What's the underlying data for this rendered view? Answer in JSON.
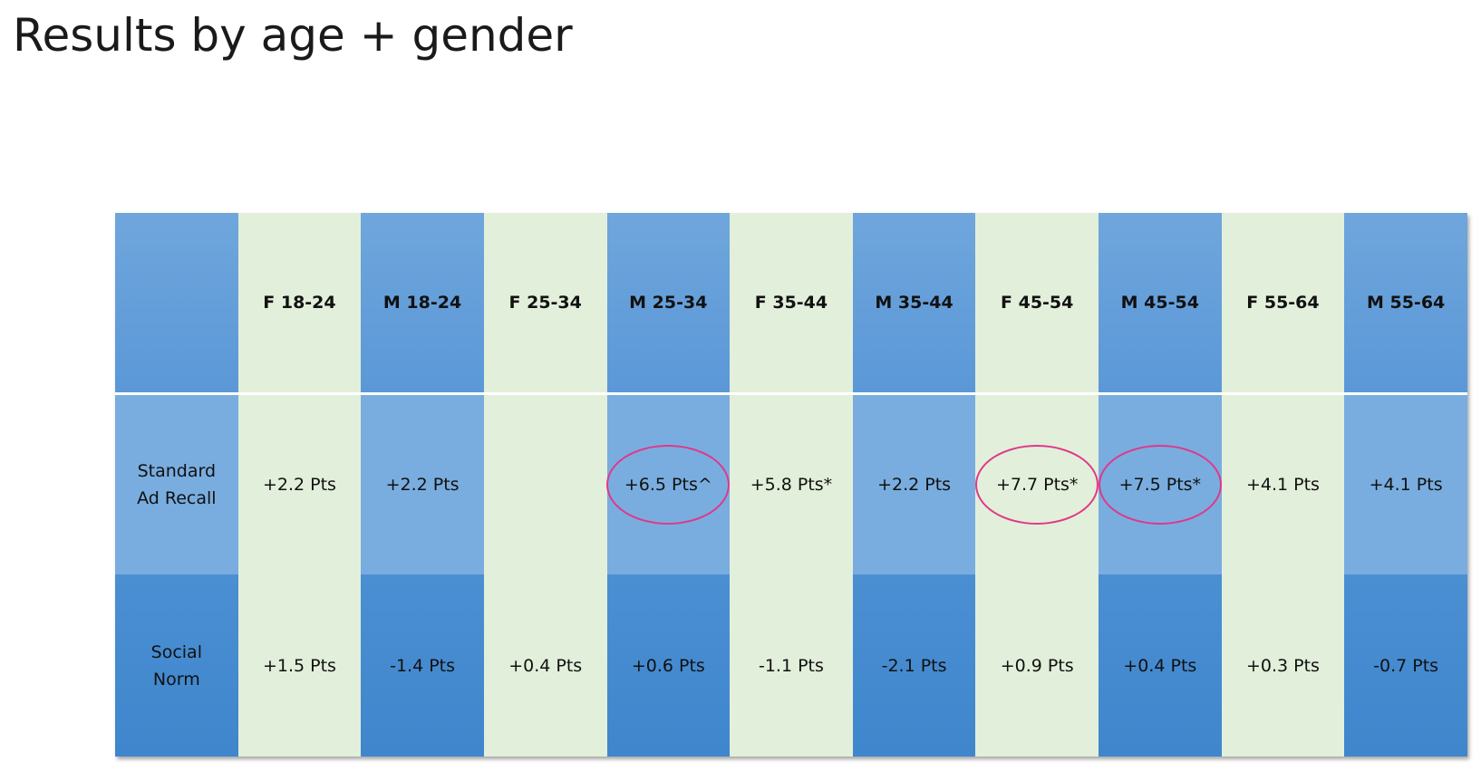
{
  "title": "Results by age + gender",
  "columns": [
    "F 18-24",
    "M 18-24",
    "F 25-34",
    "M 25-34",
    "F 35-44",
    "M 35-44",
    "F 45-54",
    "M 45-54",
    "F 55-64",
    "M 55-64"
  ],
  "rows": [
    {
      "label_line1": "Standard",
      "label_line2": "Ad Recall",
      "values": [
        "+2.2 Pts",
        "+2.2 Pts",
        "",
        "+6.5 Pts^",
        "+5.8 Pts*",
        "+2.2 Pts",
        "+7.7 Pts*",
        "+7.5 Pts*",
        "+4.1 Pts",
        "+4.1 Pts"
      ],
      "circled": [
        false,
        false,
        false,
        true,
        false,
        false,
        true,
        true,
        false,
        false
      ]
    },
    {
      "label_line1": "Social",
      "label_line2": "Norm",
      "values": [
        "+1.5 Pts",
        "-1.4 Pts",
        "+0.4 Pts",
        "+0.6 Pts",
        "-1.1 Pts",
        "-2.1 Pts",
        "+0.9 Pts",
        "+0.4 Pts",
        "+0.3 Pts",
        "-0.7 Pts"
      ],
      "circled": [
        false,
        false,
        false,
        false,
        false,
        false,
        false,
        false,
        false,
        false
      ]
    }
  ],
  "colors": {
    "blue_header": "#6fa6dc",
    "blue_recall": "#79addf",
    "blue_norm": "#4b8fd3",
    "green": "#e2efda",
    "highlight_circle": "#e0388a"
  }
}
